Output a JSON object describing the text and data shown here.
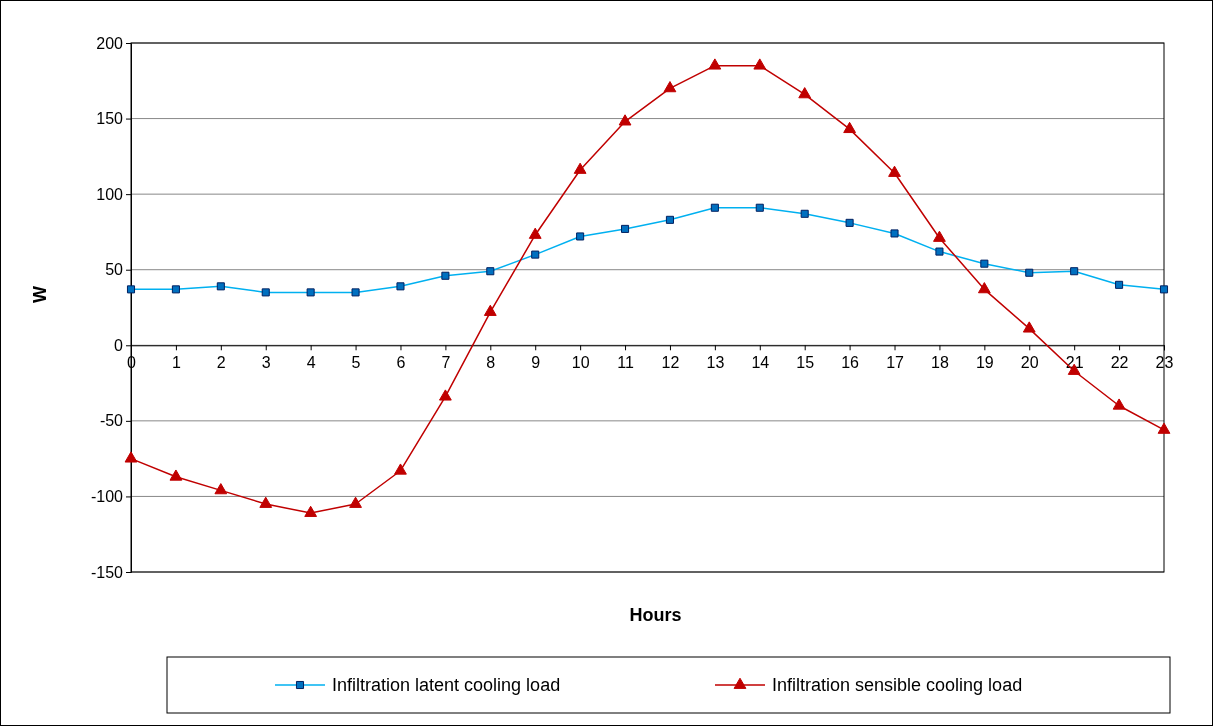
{
  "chart_data": {
    "type": "line",
    "xlabel": "Hours",
    "ylabel": "W",
    "x": [
      0,
      1,
      2,
      3,
      4,
      5,
      6,
      7,
      8,
      9,
      10,
      11,
      12,
      13,
      14,
      15,
      16,
      17,
      18,
      19,
      20,
      21,
      22,
      23
    ],
    "xlim": [
      0,
      23
    ],
    "xticks": [
      0,
      1,
      2,
      3,
      4,
      5,
      6,
      7,
      8,
      9,
      10,
      11,
      12,
      13,
      14,
      15,
      16,
      17,
      18,
      19,
      20,
      21,
      22,
      23
    ],
    "ylim": [
      -150,
      200
    ],
    "yticks": [
      -150,
      -100,
      -50,
      0,
      50,
      100,
      150,
      200
    ],
    "grid": "y",
    "legend": "bottom",
    "line_style": "solid",
    "series": [
      {
        "name": "Infiltration latent cooling load",
        "color": "#00b0f0",
        "marker": "square",
        "values": [
          37,
          37,
          39,
          35,
          35,
          35,
          39,
          46,
          49,
          60,
          72,
          77,
          83,
          91,
          91,
          87,
          81,
          74,
          62,
          54,
          48,
          49,
          40,
          37
        ]
      },
      {
        "name": "Infiltration sensible cooling load",
        "color": "#c00000",
        "marker": "triangle",
        "values": [
          -75,
          -87,
          -96,
          -105,
          -111,
          -105,
          -83,
          -34,
          22,
          73,
          116,
          148,
          170,
          185,
          185,
          166,
          143,
          114,
          71,
          37,
          11,
          -17,
          -40,
          -56
        ]
      }
    ]
  }
}
